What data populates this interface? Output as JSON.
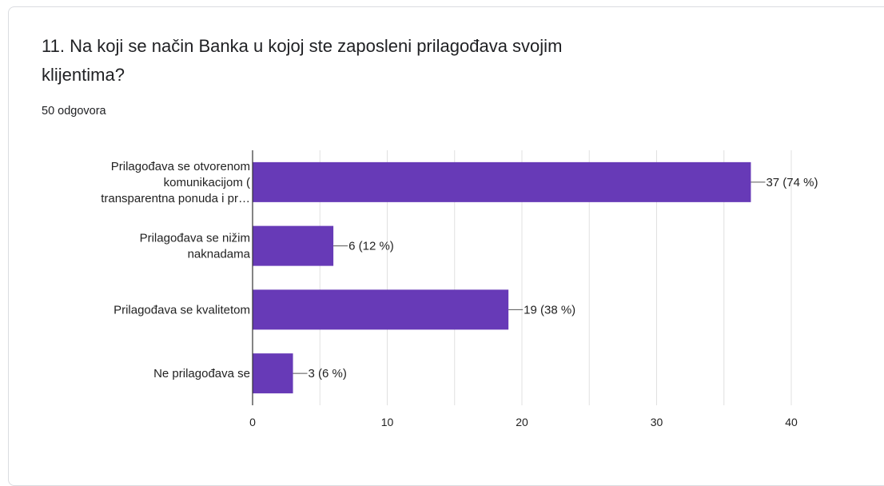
{
  "question": {
    "title_line1": "11. Na koji se način Banka u kojoj ste zaposleni prilagođava svojim",
    "title_line2": "klijentima?",
    "response_count": "50 odgovora"
  },
  "chart_data": {
    "type": "bar",
    "orientation": "horizontal",
    "categories": [
      [
        "Prilagođava se otvorenom",
        "komunikacijom (",
        "transparentna ponuda i pr…"
      ],
      [
        "Prilagođava se nižim",
        "naknadama"
      ],
      [
        "Prilagođava se kvalitetom"
      ],
      [
        "Ne prilagođava se"
      ]
    ],
    "values": [
      37,
      6,
      19,
      3
    ],
    "data_labels": [
      "37 (74 %)",
      "6 (12 %)",
      "19 (38 %)",
      "3 (6 %)"
    ],
    "x_ticks": [
      0,
      10,
      20,
      30,
      40
    ],
    "xlim": [
      0,
      40
    ],
    "grid": true,
    "bar_color": "#673ab7",
    "grid_color": "#e0e0e0",
    "axis_color": "#333333"
  }
}
